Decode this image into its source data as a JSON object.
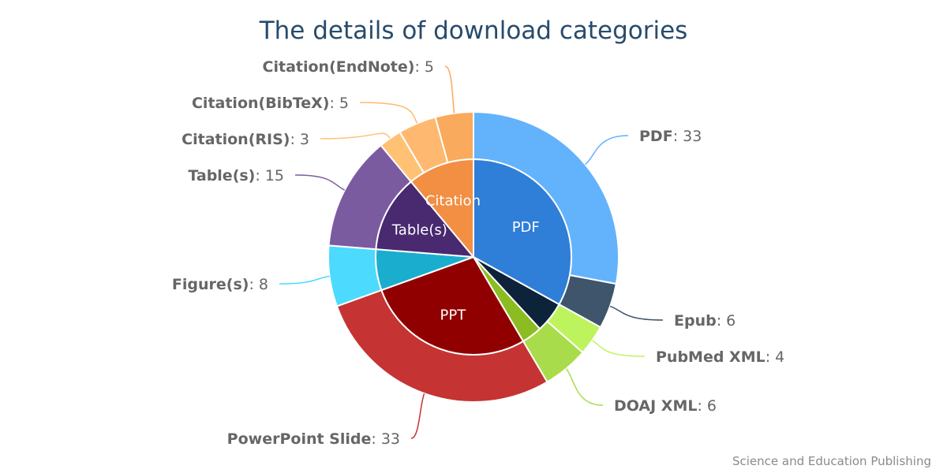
{
  "chart_data": {
    "type": "pie",
    "subtype": "nested-donut",
    "title": "The details of download categories",
    "credit": "Science and Education Publishing",
    "inner": [
      {
        "name": "PDF",
        "value": 39,
        "color": "#2f7ed8",
        "show_label": true
      },
      {
        "name": "",
        "value": 6,
        "color": "#0d233a",
        "show_label": false
      },
      {
        "name": "",
        "value": 4,
        "color": "#8bbc21",
        "show_label": false
      },
      {
        "name": "PPT",
        "value": 33,
        "color": "#910000",
        "show_label": true
      },
      {
        "name": "",
        "value": 8,
        "color": "#1aadce",
        "show_label": false
      },
      {
        "name": "Table(s)",
        "value": 15,
        "color": "#492970",
        "show_label": true
      },
      {
        "name": "Citation",
        "value": 13,
        "color": "#f28f43",
        "show_label": true
      }
    ],
    "outer": [
      {
        "name": "PDF",
        "value": 33,
        "color": "#63b2fc"
      },
      {
        "name": "Epub",
        "value": 6,
        "color": "#3e556c"
      },
      {
        "name": "PubMed XML",
        "value": 4,
        "color": "#bdf45d"
      },
      {
        "name": "DOAJ XML",
        "value": 6,
        "color": "#a8dc4a"
      },
      {
        "name": "PowerPoint Slide",
        "value": 33,
        "color": "#c53333"
      },
      {
        "name": "Figure(s)",
        "value": 8,
        "color": "#4cdaff"
      },
      {
        "name": "Table(s)",
        "value": 15,
        "color": "#7a5ba0"
      },
      {
        "name": "Citation(RIS)",
        "value": 3,
        "color": "#ffc275"
      },
      {
        "name": "Citation(BibTeX)",
        "value": 5,
        "color": "#ffb870"
      },
      {
        "name": "Citation(EndNote)",
        "value": 5,
        "color": "#f9aa5c"
      }
    ]
  }
}
